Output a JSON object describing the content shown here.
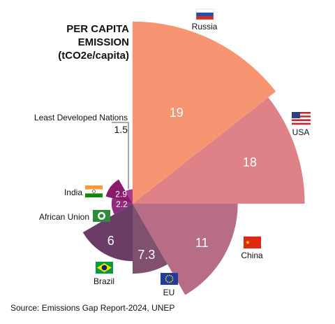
{
  "title_lines": [
    "PER CAPITA",
    "EMISSION",
    "(tCO2e/capita)"
  ],
  "source": "Source: Emissions Gap Report-2024, UNEP",
  "chart_data": {
    "type": "polar_area",
    "title": "PER CAPITA EMISSION (tCO2e/capita)",
    "unit": "tCO2e/capita",
    "values_by_category": [
      {
        "name": "Russia",
        "value": 19,
        "color": "#f79572"
      },
      {
        "name": "USA",
        "value": 18,
        "color": "#df8287"
      },
      {
        "name": "China",
        "value": 11,
        "color": "#b66d85"
      },
      {
        "name": "EU",
        "value": 7.3,
        "color": "#82506f"
      },
      {
        "name": "Brazil",
        "value": 6,
        "color": "#6b3c66"
      },
      {
        "name": "African Union",
        "value": 2.2,
        "color": "#8e2c7d"
      },
      {
        "name": "India",
        "value": 2.9,
        "color": "#8c1a6a"
      },
      {
        "name": "Least Developed Nations",
        "value": 1.5,
        "color": "#a83a91"
      }
    ]
  },
  "labels": {
    "russia": "Russia",
    "usa": "USA",
    "china": "China",
    "eu": "EU",
    "brazil": "Brazil",
    "african_union": "African Union",
    "india": "India",
    "ldn_name": "Least Developed Nations",
    "ldn_value": "1.5"
  },
  "value_labels": {
    "russia": "19",
    "usa": "18",
    "china": "11",
    "eu": "7.3",
    "brazil": "6",
    "african_union": "2.2",
    "india": "2.9"
  },
  "flags": [
    "russia-flag-icon",
    "usa-flag-icon",
    "china-flag-icon",
    "eu-flag-icon",
    "brazil-flag-icon",
    "african-union-flag-icon",
    "india-flag-icon"
  ]
}
